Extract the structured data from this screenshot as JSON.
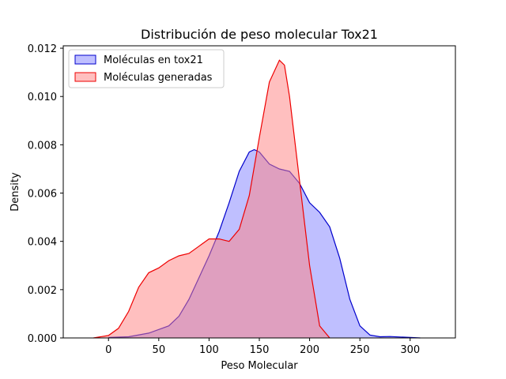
{
  "chart_data": {
    "type": "area",
    "title": "Distribución de peso molecular Tox21",
    "xlabel": "Peso Molecular",
    "ylabel": "Density",
    "xlim": [
      -45,
      345
    ],
    "ylim": [
      0,
      0.0121
    ],
    "xticks": [
      0,
      50,
      100,
      150,
      200,
      250,
      300
    ],
    "yticks": [
      0.0,
      0.002,
      0.004,
      0.006,
      0.008,
      0.01,
      0.012
    ],
    "ytick_labels": [
      "0.000",
      "0.002",
      "0.004",
      "0.006",
      "0.008",
      "0.010",
      "0.012"
    ],
    "legend_position": "top-left",
    "grid": false,
    "series": [
      {
        "name": "Moléculas en tox21",
        "color": "#0000cc",
        "fill": "#8080ff",
        "x": [
          0,
          20,
          40,
          60,
          70,
          80,
          90,
          100,
          110,
          120,
          130,
          140,
          145,
          150,
          160,
          170,
          180,
          190,
          200,
          210,
          220,
          230,
          240,
          250,
          260,
          270,
          280,
          290,
          300,
          310
        ],
        "y": [
          2e-05,
          5e-05,
          0.0002,
          0.0005,
          0.0009,
          0.0016,
          0.0025,
          0.0034,
          0.0044,
          0.0056,
          0.0069,
          0.0077,
          0.0078,
          0.0077,
          0.0072,
          0.007,
          0.0069,
          0.0064,
          0.0056,
          0.0052,
          0.0046,
          0.0033,
          0.0016,
          0.0005,
          0.00012,
          5e-05,
          6e-05,
          4e-05,
          2e-05,
          0.0
        ]
      },
      {
        "name": "Moléculas generadas",
        "color": "#ee0000",
        "fill": "#ff8080",
        "x": [
          -15,
          0,
          10,
          20,
          30,
          40,
          50,
          60,
          70,
          80,
          90,
          100,
          110,
          120,
          130,
          140,
          150,
          160,
          170,
          175,
          180,
          190,
          200,
          210,
          220
        ],
        "y": [
          0.0,
          0.0001,
          0.0004,
          0.0011,
          0.0021,
          0.0027,
          0.0029,
          0.0032,
          0.0034,
          0.0035,
          0.0038,
          0.0041,
          0.0041,
          0.004,
          0.0045,
          0.0059,
          0.0083,
          0.0106,
          0.0115,
          0.0113,
          0.01,
          0.0065,
          0.003,
          0.0005,
          0.0
        ]
      }
    ]
  }
}
